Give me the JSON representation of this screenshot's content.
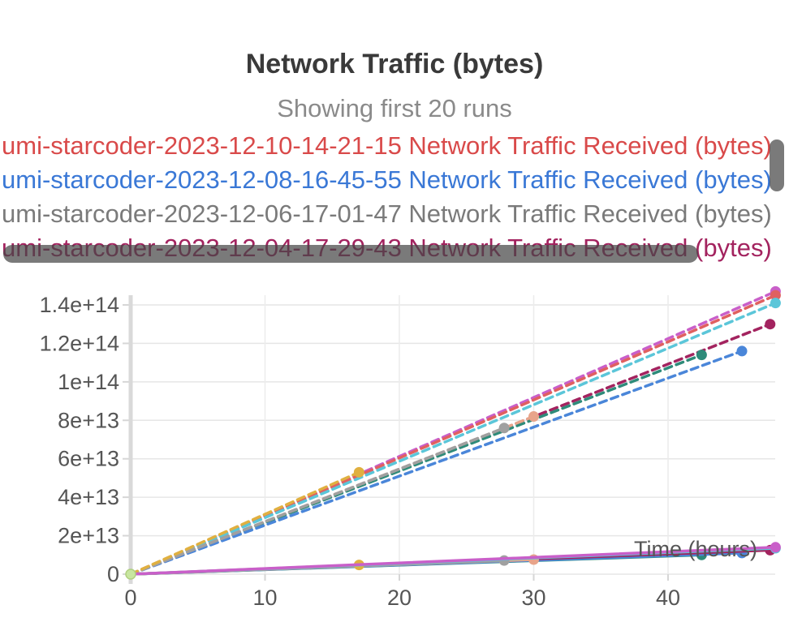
{
  "chart_data": {
    "type": "line",
    "title": "Network Traffic (bytes)",
    "subtitle": "Showing first 20 runs",
    "xlabel": "Time (hours)",
    "ylabel": "",
    "xlim": [
      0,
      48
    ],
    "ylim": [
      0,
      140000000000000.0
    ],
    "x_ticks": [
      0,
      10,
      20,
      30,
      40
    ],
    "y_ticks": [
      0,
      20000000000000.0,
      40000000000000.0,
      60000000000000.0,
      80000000000000.0,
      100000000000000.0,
      120000000000000.0,
      140000000000000.0
    ],
    "y_tick_labels": [
      "0",
      "2e+13",
      "4e+13",
      "6e+13",
      "8e+13",
      "1e+14",
      "1.2e+14",
      "1.4e+14"
    ],
    "x_tick_labels": [
      "0",
      "10",
      "20",
      "30",
      "40"
    ],
    "grid": true,
    "legend_position": "top",
    "legend": [
      {
        "label": "umi-starcoder-2023-12-10-14-21-15 Network Traffic Received (bytes)",
        "color": "#d94a4a"
      },
      {
        "label": "umi-starcoder-2023-12-08-16-45-55 Network Traffic Received (bytes)",
        "color": "#3a78d6"
      },
      {
        "label": "umi-starcoder-2023-12-06-17-01-47 Network Traffic Received (bytes)",
        "color": "#7a7a7a"
      },
      {
        "label": "umi-starcoder-2023-12-04-17-29-43 Network Traffic Received (bytes)",
        "color": "#a3235f"
      }
    ],
    "series": [
      {
        "color": "#c95fc9",
        "style": "dashed",
        "x": [
          0,
          48
        ],
        "y": [
          0,
          147000000000000.0
        ]
      },
      {
        "color": "#e06060",
        "style": "dashed",
        "x": [
          0,
          48
        ],
        "y": [
          0,
          145000000000000.0
        ]
      },
      {
        "color": "#5bc6d9",
        "style": "dashed",
        "x": [
          0,
          48
        ],
        "y": [
          0,
          141000000000000.0
        ]
      },
      {
        "color": "#a3235f",
        "style": "dashed",
        "x": [
          0,
          47.6
        ],
        "y": [
          0,
          130000000000000.0
        ]
      },
      {
        "color": "#2e8b7a",
        "style": "dashed",
        "x": [
          0,
          42.5
        ],
        "y": [
          0,
          114000000000000.0
        ]
      },
      {
        "color": "#4a86d9",
        "style": "dashed",
        "x": [
          0,
          45.5
        ],
        "y": [
          0,
          116000000000000.0
        ]
      },
      {
        "color": "#e8a48a",
        "style": "dashed",
        "x": [
          0,
          30
        ],
        "y": [
          0,
          82000000000000.0
        ]
      },
      {
        "color": "#a0a0a0",
        "style": "dashed",
        "x": [
          0,
          27.8
        ],
        "y": [
          0,
          76000000000000.0
        ]
      },
      {
        "color": "#e0b040",
        "style": "dashed",
        "x": [
          0,
          17
        ],
        "y": [
          0,
          53000000000000.0
        ]
      },
      {
        "color": "#2e8b7a",
        "style": "solid",
        "x": [
          0,
          42.5
        ],
        "y": [
          0,
          10000000000000.0
        ]
      },
      {
        "color": "#4a86d9",
        "style": "solid",
        "x": [
          0,
          45.5
        ],
        "y": [
          0,
          11000000000000.0
        ]
      },
      {
        "color": "#a3235f",
        "style": "solid",
        "x": [
          0,
          47.6
        ],
        "y": [
          0,
          12500000000000.0
        ]
      },
      {
        "color": "#e8a48a",
        "style": "solid",
        "x": [
          0,
          30
        ],
        "y": [
          0,
          7600000000000.0
        ]
      },
      {
        "color": "#a0a0a0",
        "style": "solid",
        "x": [
          0,
          27.8
        ],
        "y": [
          0,
          7100000000000.0
        ]
      },
      {
        "color": "#e0b040",
        "style": "solid",
        "x": [
          0,
          17
        ],
        "y": [
          0,
          4800000000000.0
        ]
      },
      {
        "color": "#5bc6d9",
        "style": "solid",
        "x": [
          0,
          48
        ],
        "y": [
          0,
          13500000000000.0
        ]
      },
      {
        "color": "#c95fc9",
        "style": "solid",
        "x": [
          0,
          48
        ],
        "y": [
          0,
          14000000000000.0
        ]
      }
    ]
  }
}
